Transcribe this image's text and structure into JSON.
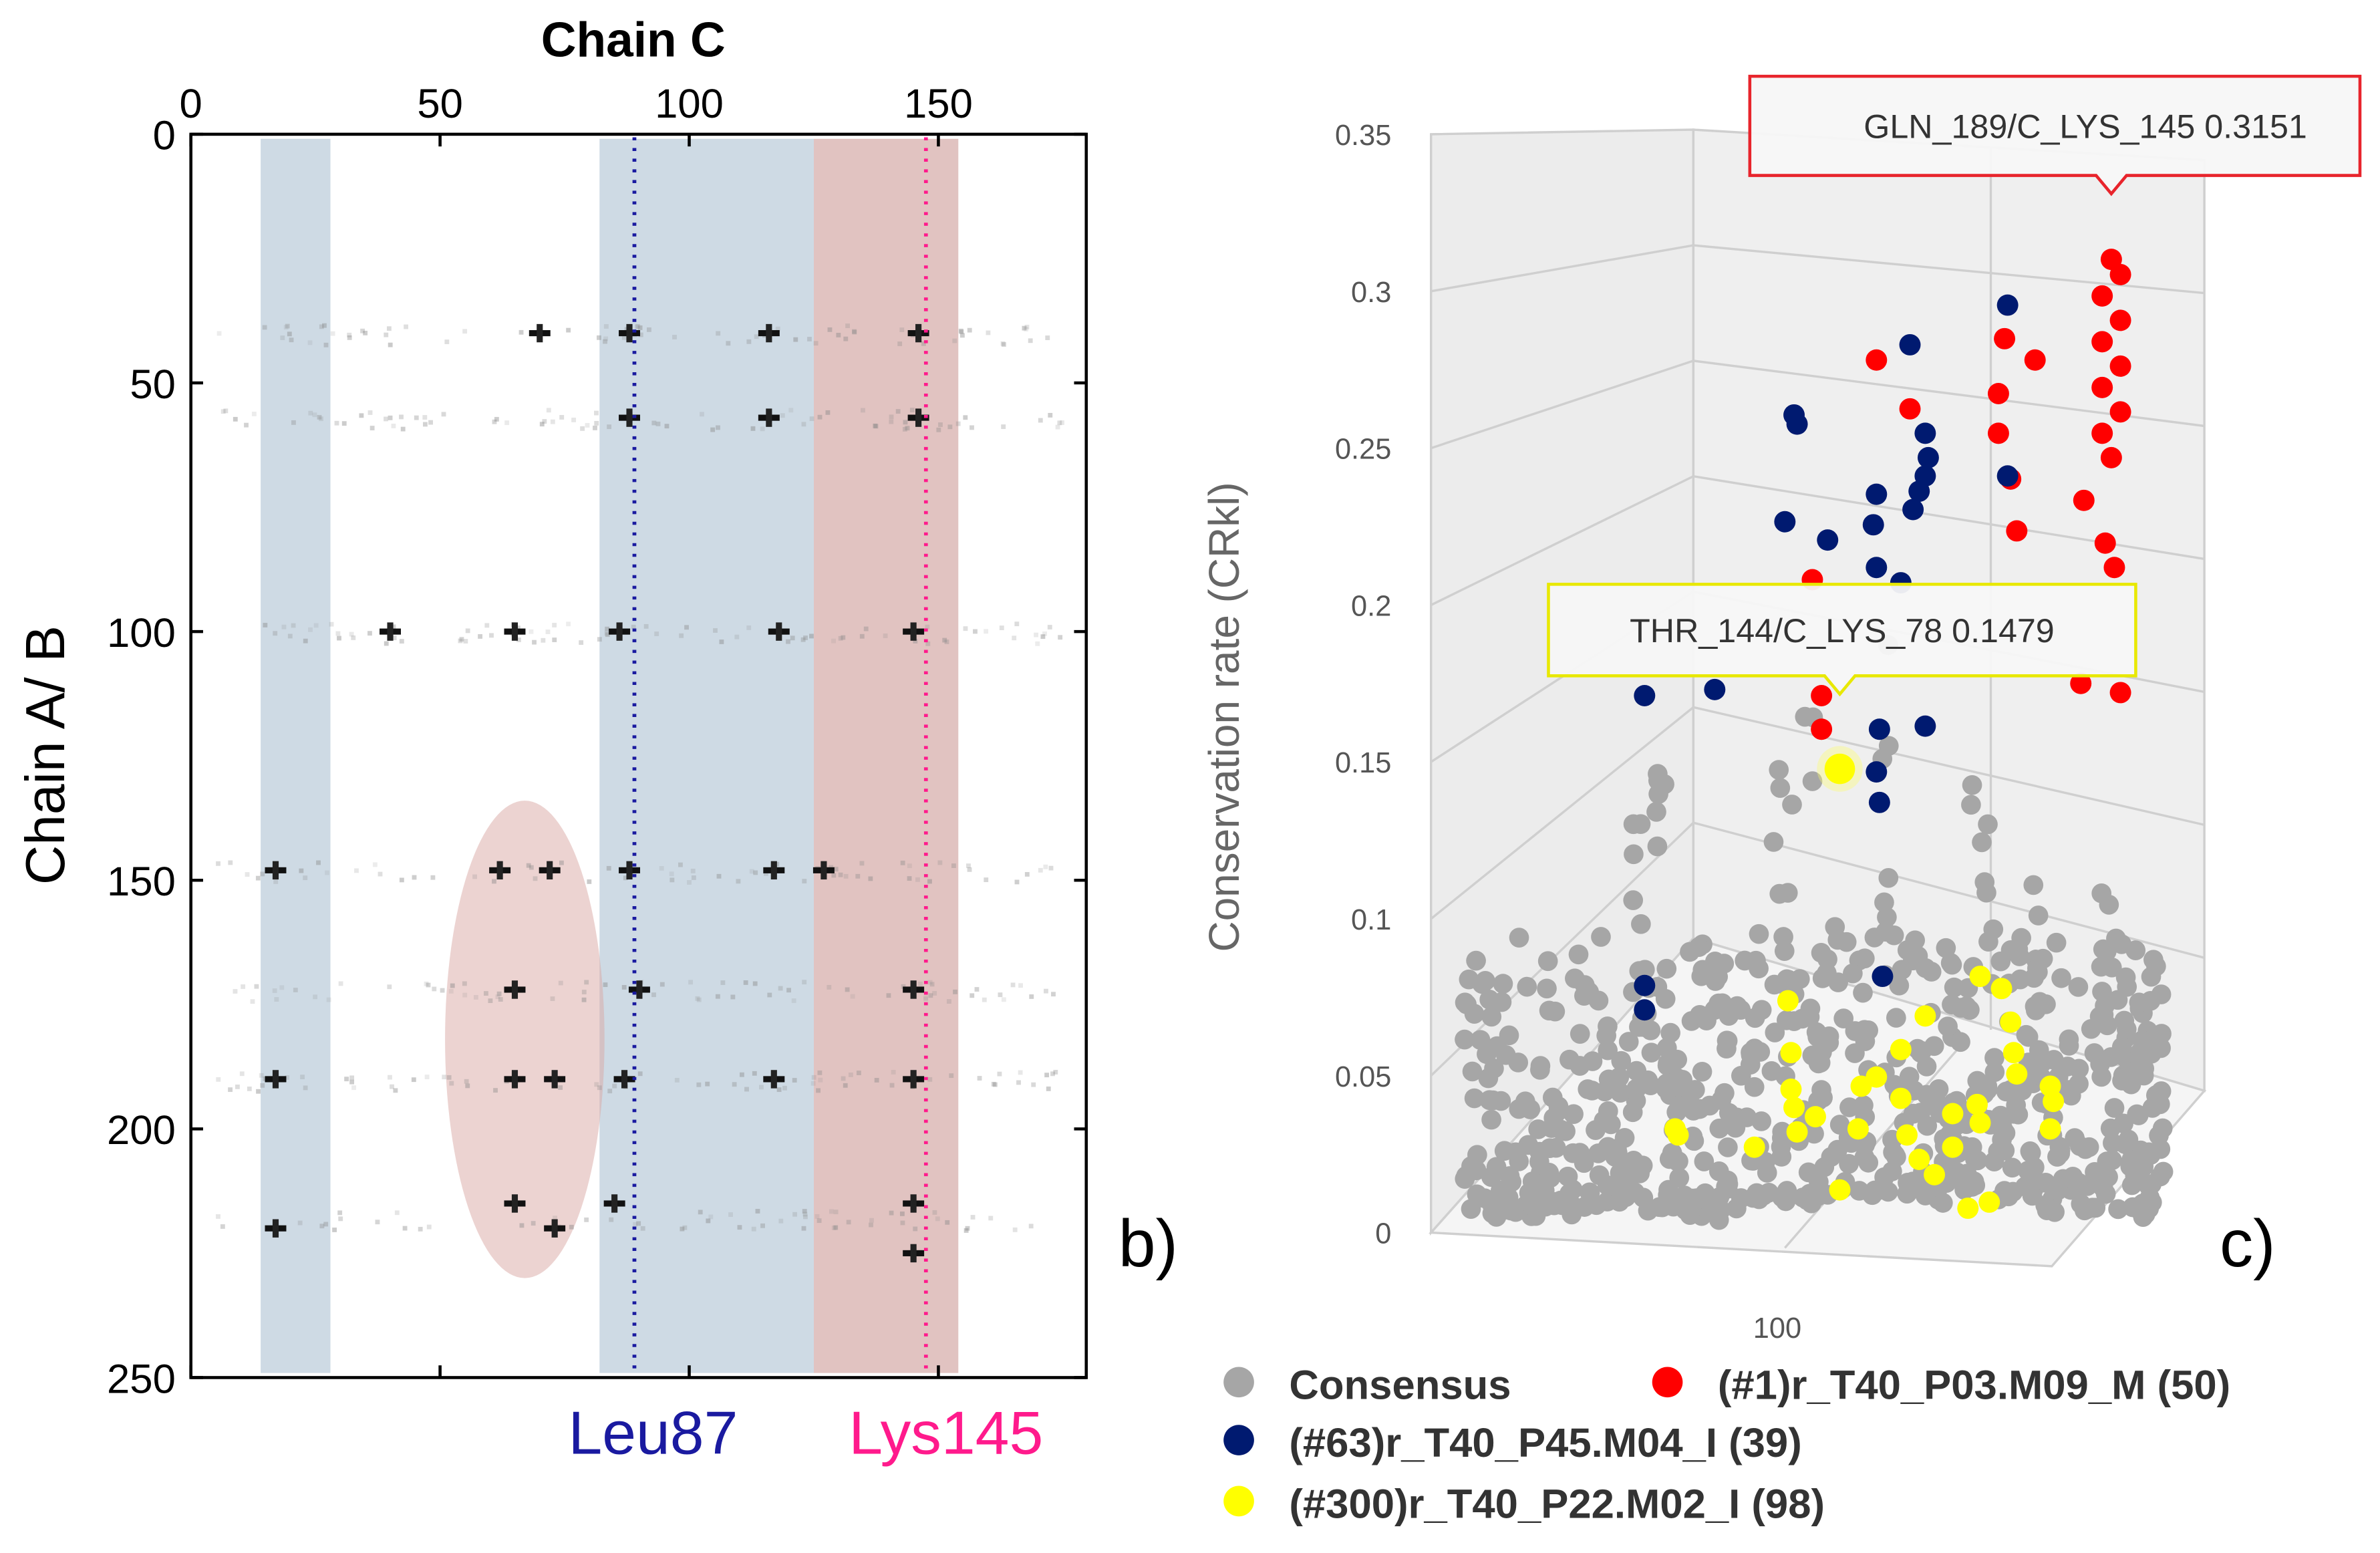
{
  "chart_data": [
    {
      "type": "heatmap",
      "panel_label": "b)",
      "title": "Chain C",
      "ylabel": "Chain A/ B",
      "xlim": [
        0,
        180
      ],
      "ylim": [
        250,
        0
      ],
      "xticks": [
        "0",
        "50",
        "100",
        "150"
      ],
      "yticks": [
        "0",
        "50",
        "100",
        "150",
        "200",
        "250"
      ],
      "highlight_bands_blue": [
        [
          14,
          28
        ],
        [
          82,
          125
        ]
      ],
      "highlight_band_pink": [
        125,
        154
      ],
      "highlight_region_ellipse": {
        "x_center": 67,
        "y_center": 182,
        "x_halfwidth": 16,
        "y_halfwidth": 48
      },
      "marked_residues": [
        {
          "label": "Leu87",
          "x": 89,
          "color": "#1a1aa0"
        },
        {
          "label": "Lys145",
          "x": 147.5,
          "color": "#ff1a8c"
        }
      ],
      "contacts": [
        [
          88,
          40
        ],
        [
          116,
          40
        ],
        [
          146,
          40
        ],
        [
          70,
          40
        ],
        [
          88,
          57
        ],
        [
          116,
          57
        ],
        [
          146,
          57
        ],
        [
          40,
          100
        ],
        [
          65,
          100
        ],
        [
          86,
          100
        ],
        [
          118,
          100
        ],
        [
          145,
          100
        ],
        [
          17,
          148
        ],
        [
          62,
          148
        ],
        [
          72,
          148
        ],
        [
          88,
          148
        ],
        [
          117,
          148
        ],
        [
          127,
          148
        ],
        [
          65,
          172
        ],
        [
          90,
          172
        ],
        [
          145,
          172
        ],
        [
          17,
          190
        ],
        [
          65,
          190
        ],
        [
          73,
          190
        ],
        [
          87,
          190
        ],
        [
          117,
          190
        ],
        [
          145,
          190
        ],
        [
          17,
          220
        ],
        [
          65,
          215
        ],
        [
          73,
          220
        ],
        [
          85,
          215
        ],
        [
          145,
          215
        ],
        [
          145,
          225
        ]
      ]
    },
    {
      "type": "scatter",
      "panel_label": "c)",
      "ylabel": "Conservation rate (CRkl)",
      "ylim": [
        0,
        0.35
      ],
      "yticks": [
        "0",
        "0.05",
        "0.1",
        "0.15",
        "0.2",
        "0.25",
        "0.3",
        "0.35"
      ],
      "xtick_label": "100",
      "legend": [
        {
          "name": "Consensus",
          "color": "#a6a6a6"
        },
        {
          "name": "(#1)r_T40_P03.M09_M (50)",
          "color": "#ff0000"
        },
        {
          "name": "(#63)r_T40_P45.M04_I (39)",
          "color": "#001a70"
        },
        {
          "name": "(#300)r_T40_P22.M02_I (98)",
          "color": "#ffff00"
        }
      ],
      "tooltips": [
        {
          "text": "GLN_189/C_LYS_145 0.3151",
          "border": "#e8242c",
          "point": [
            222,
            0.315
          ]
        },
        {
          "text": "THR_144/C_LYS_78 0.1479",
          "border": "#e8e800",
          "point": [
            133,
            0.148
          ]
        }
      ],
      "series": [
        {
          "name": "(#1)r_T40_P03.M09_M (50)",
          "color": "#ff0000",
          "points": [
            [
              222,
              0.315
            ],
            [
              225,
              0.31
            ],
            [
              219,
              0.303
            ],
            [
              225,
              0.295
            ],
            [
              219,
              0.288
            ],
            [
              225,
              0.28
            ],
            [
              219,
              0.273
            ],
            [
              225,
              0.265
            ],
            [
              219,
              0.258
            ],
            [
              222,
              0.25
            ],
            [
              145,
              0.282
            ],
            [
              156,
              0.266
            ],
            [
              187,
              0.289
            ],
            [
              185,
              0.271
            ],
            [
              197,
              0.282
            ],
            [
              185,
              0.258
            ],
            [
              189,
              0.243
            ],
            [
              191,
              0.226
            ],
            [
              213,
              0.236
            ],
            [
              220,
              0.222
            ],
            [
              223,
              0.214
            ],
            [
              212,
              0.176
            ],
            [
              225,
              0.173
            ],
            [
              127,
              0.161
            ],
            [
              124,
              0.21
            ],
            [
              127,
              0.172
            ]
          ]
        },
        {
          "name": "(#63)r_T40_P45.M04_I (39)",
          "color": "#001a70",
          "points": [
            [
              188,
              0.3
            ],
            [
              156,
              0.287
            ],
            [
              118,
              0.264
            ],
            [
              119,
              0.261
            ],
            [
              161,
              0.258
            ],
            [
              162,
              0.25
            ],
            [
              161,
              0.244
            ],
            [
              159,
              0.239
            ],
            [
              157,
              0.233
            ],
            [
              145,
              0.238
            ],
            [
              144,
              0.228
            ],
            [
              115,
              0.229
            ],
            [
              129,
              0.223
            ],
            [
              145,
              0.214
            ],
            [
              153,
              0.209
            ],
            [
              69,
              0.172
            ],
            [
              92,
              0.174
            ],
            [
              146,
              0.161
            ],
            [
              161,
              0.162
            ],
            [
              145,
              0.147
            ],
            [
              146,
              0.137
            ],
            [
              188,
              0.244
            ],
            [
              69,
              0.077
            ],
            [
              69,
              0.069
            ],
            [
              147,
              0.08
            ]
          ]
        },
        {
          "name": "(#300)r_T40_P22.M02_I (98)",
          "color": "#ffff00",
          "points": [
            [
              116,
              0.072
            ],
            [
              117,
              0.055
            ],
            [
              117,
              0.043
            ],
            [
              118,
              0.037
            ],
            [
              119,
              0.029
            ],
            [
              79,
              0.03
            ],
            [
              80,
              0.028
            ],
            [
              105,
              0.024
            ],
            [
              125,
              0.034
            ],
            [
              140,
              0.044
            ],
            [
              153,
              0.04
            ],
            [
              139,
              0.03
            ],
            [
              155,
              0.028
            ],
            [
              159,
              0.02
            ],
            [
              161,
              0.067
            ],
            [
              153,
              0.056
            ],
            [
              145,
              0.047
            ],
            [
              164,
              0.015
            ],
            [
              170,
              0.024
            ],
            [
              178,
              0.038
            ],
            [
              179,
              0.032
            ],
            [
              175,
              0.004
            ],
            [
              182,
              0.006
            ],
            [
              186,
              0.076
            ],
            [
              189,
              0.065
            ],
            [
              190,
              0.055
            ],
            [
              191,
              0.048
            ],
            [
              179,
              0.08
            ],
            [
              202,
              0.044
            ],
            [
              203,
              0.039
            ],
            [
              202,
              0.03
            ],
            [
              133,
              0.01
            ],
            [
              170,
              0.035
            ],
            [
              133,
              0.148
            ]
          ]
        }
      ]
    }
  ]
}
